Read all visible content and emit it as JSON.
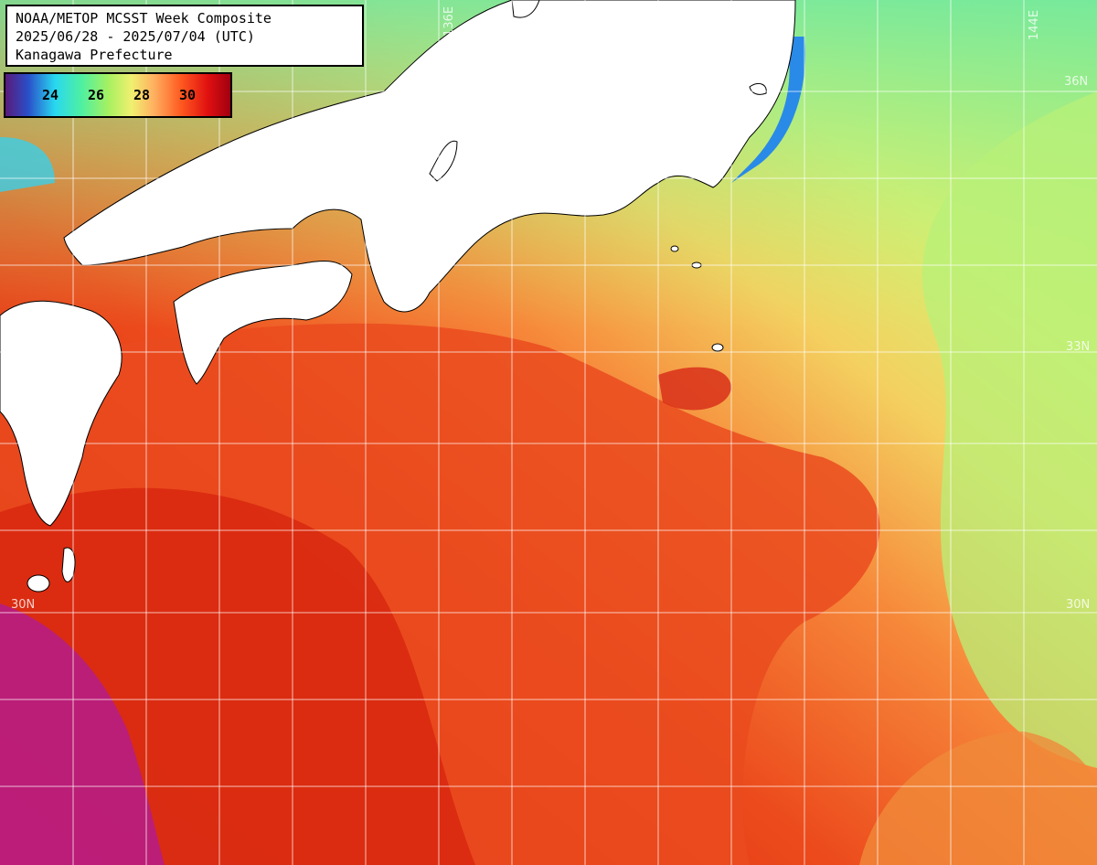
{
  "title": {
    "lines": [
      "NOAA/METOP MCSST Week Composite",
      "2025/06/28 - 2025/07/04 (UTC)",
      "Kanagawa Prefecture"
    ]
  },
  "legend": {
    "labels": [
      "24",
      "26",
      "28",
      "30"
    ],
    "unit_implied": "°C"
  },
  "grid_labels": {
    "lat_36": "36N",
    "lat_33": "33N",
    "lat_30": "30N",
    "lon_136": "136E",
    "lon_144": "144E"
  },
  "colors": {
    "land": "#ffffff",
    "warm": "#e8401a",
    "hot": "#d01f10",
    "cool": "#a8f070",
    "cold": "#2a8ae8",
    "purple": "#b01a9a"
  }
}
